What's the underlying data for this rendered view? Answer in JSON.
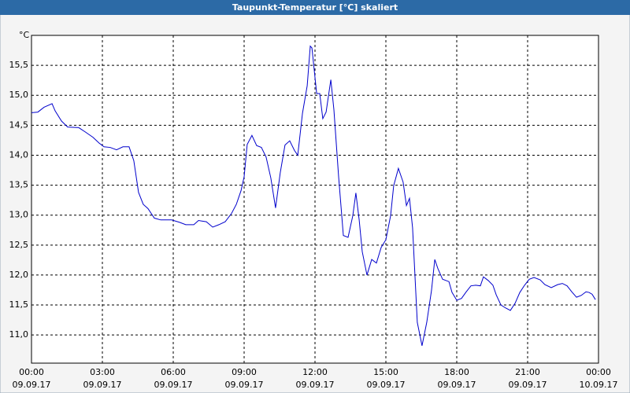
{
  "chart_data": {
    "type": "line",
    "title": "Taupunkt-Temperatur [°C] skaliert",
    "y_unit": "°C",
    "x": [
      0,
      0.27,
      0.53,
      0.87,
      1.0,
      1.27,
      1.53,
      2.0,
      2.27,
      2.6,
      2.87,
      3.07,
      3.33,
      3.6,
      3.87,
      4.13,
      4.33,
      4.53,
      4.73,
      4.93,
      5.2,
      5.47,
      5.93,
      6.27,
      6.53,
      6.87,
      7.07,
      7.4,
      7.67,
      7.93,
      8.2,
      8.47,
      8.67,
      8.87,
      9.0,
      9.13,
      9.33,
      9.53,
      9.73,
      9.93,
      10.13,
      10.33,
      10.53,
      10.73,
      10.93,
      11.13,
      11.27,
      11.47,
      11.67,
      11.8,
      11.87,
      12.07,
      12.2,
      12.33,
      12.47,
      12.67,
      12.8,
      13.0,
      13.2,
      13.4,
      13.6,
      13.73,
      13.87,
      14.0,
      14.2,
      14.4,
      14.6,
      14.8,
      15.0,
      15.2,
      15.33,
      15.53,
      15.73,
      15.87,
      16.0,
      16.13,
      16.33,
      16.53,
      16.73,
      16.93,
      17.07,
      17.2,
      17.4,
      17.67,
      17.8,
      18.0,
      18.2,
      18.4,
      18.6,
      18.8,
      19.0,
      19.13,
      19.33,
      19.53,
      19.67,
      19.87,
      20.07,
      20.27,
      20.47,
      20.67,
      20.87,
      21.07,
      21.27,
      21.53,
      21.73,
      22.0,
      22.27,
      22.47,
      22.67,
      22.87,
      23.07,
      23.27,
      23.47,
      23.6,
      23.73,
      23.87
    ],
    "series": [
      {
        "name": "Taupunkt",
        "color": "#0000cc",
        "values": [
          14.71,
          14.72,
          14.8,
          14.86,
          14.74,
          14.57,
          14.47,
          14.46,
          14.39,
          14.3,
          14.2,
          14.14,
          14.13,
          14.09,
          14.14,
          14.14,
          13.91,
          13.38,
          13.18,
          13.11,
          12.95,
          12.92,
          12.92,
          12.88,
          12.84,
          12.84,
          12.91,
          12.89,
          12.8,
          12.84,
          12.89,
          13.03,
          13.18,
          13.41,
          13.64,
          14.18,
          14.33,
          14.16,
          14.13,
          13.97,
          13.62,
          13.12,
          13.71,
          14.17,
          14.24,
          14.08,
          14.0,
          14.7,
          15.16,
          15.82,
          15.79,
          15.03,
          15.03,
          14.61,
          14.72,
          15.26,
          14.76,
          13.64,
          12.66,
          12.63,
          12.99,
          13.37,
          12.92,
          12.39,
          12.0,
          12.26,
          12.2,
          12.46,
          12.59,
          12.99,
          13.49,
          13.78,
          13.55,
          13.16,
          13.28,
          12.79,
          11.21,
          10.82,
          11.21,
          11.74,
          12.26,
          12.11,
          11.93,
          11.89,
          11.71,
          11.58,
          11.61,
          11.72,
          11.82,
          11.83,
          11.82,
          11.97,
          11.91,
          11.83,
          11.67,
          11.5,
          11.45,
          11.41,
          11.53,
          11.71,
          11.83,
          11.93,
          11.96,
          11.92,
          11.84,
          11.79,
          11.84,
          11.86,
          11.82,
          11.72,
          11.63,
          11.66,
          11.72,
          11.71,
          11.68,
          11.59
        ]
      }
    ],
    "xlim": [
      0,
      24
    ],
    "xticks": [
      {
        "value": 0,
        "label": "00:00"
      },
      {
        "value": 3,
        "label": "03:00"
      },
      {
        "value": 6,
        "label": "06:00"
      },
      {
        "value": 9,
        "label": "09:00"
      },
      {
        "value": 12,
        "label": "12:00"
      },
      {
        "value": 15,
        "label": "15:00"
      },
      {
        "value": 18,
        "label": "18:00"
      },
      {
        "value": 21,
        "label": "21:00"
      },
      {
        "value": 24,
        "label": "00:00"
      }
    ],
    "x_dates": [
      "09.09.17",
      "09.09.17",
      "09.09.17",
      "09.09.17",
      "09.09.17",
      "09.09.17",
      "09.09.17",
      "09.09.17",
      "10.09.17"
    ],
    "ylim": [
      10.53,
      16.0
    ],
    "yticks": [
      {
        "value": 11.0,
        "label": "11,0"
      },
      {
        "value": 11.5,
        "label": "11,5"
      },
      {
        "value": 12.0,
        "label": "12,0"
      },
      {
        "value": 12.5,
        "label": "12,5"
      },
      {
        "value": 13.0,
        "label": "13,0"
      },
      {
        "value": 13.5,
        "label": "13,5"
      },
      {
        "value": 14.0,
        "label": "14,0"
      },
      {
        "value": 14.5,
        "label": "14,5"
      },
      {
        "value": 15.0,
        "label": "15,0"
      },
      {
        "value": 15.5,
        "label": "15,5"
      }
    ],
    "grid": true
  }
}
